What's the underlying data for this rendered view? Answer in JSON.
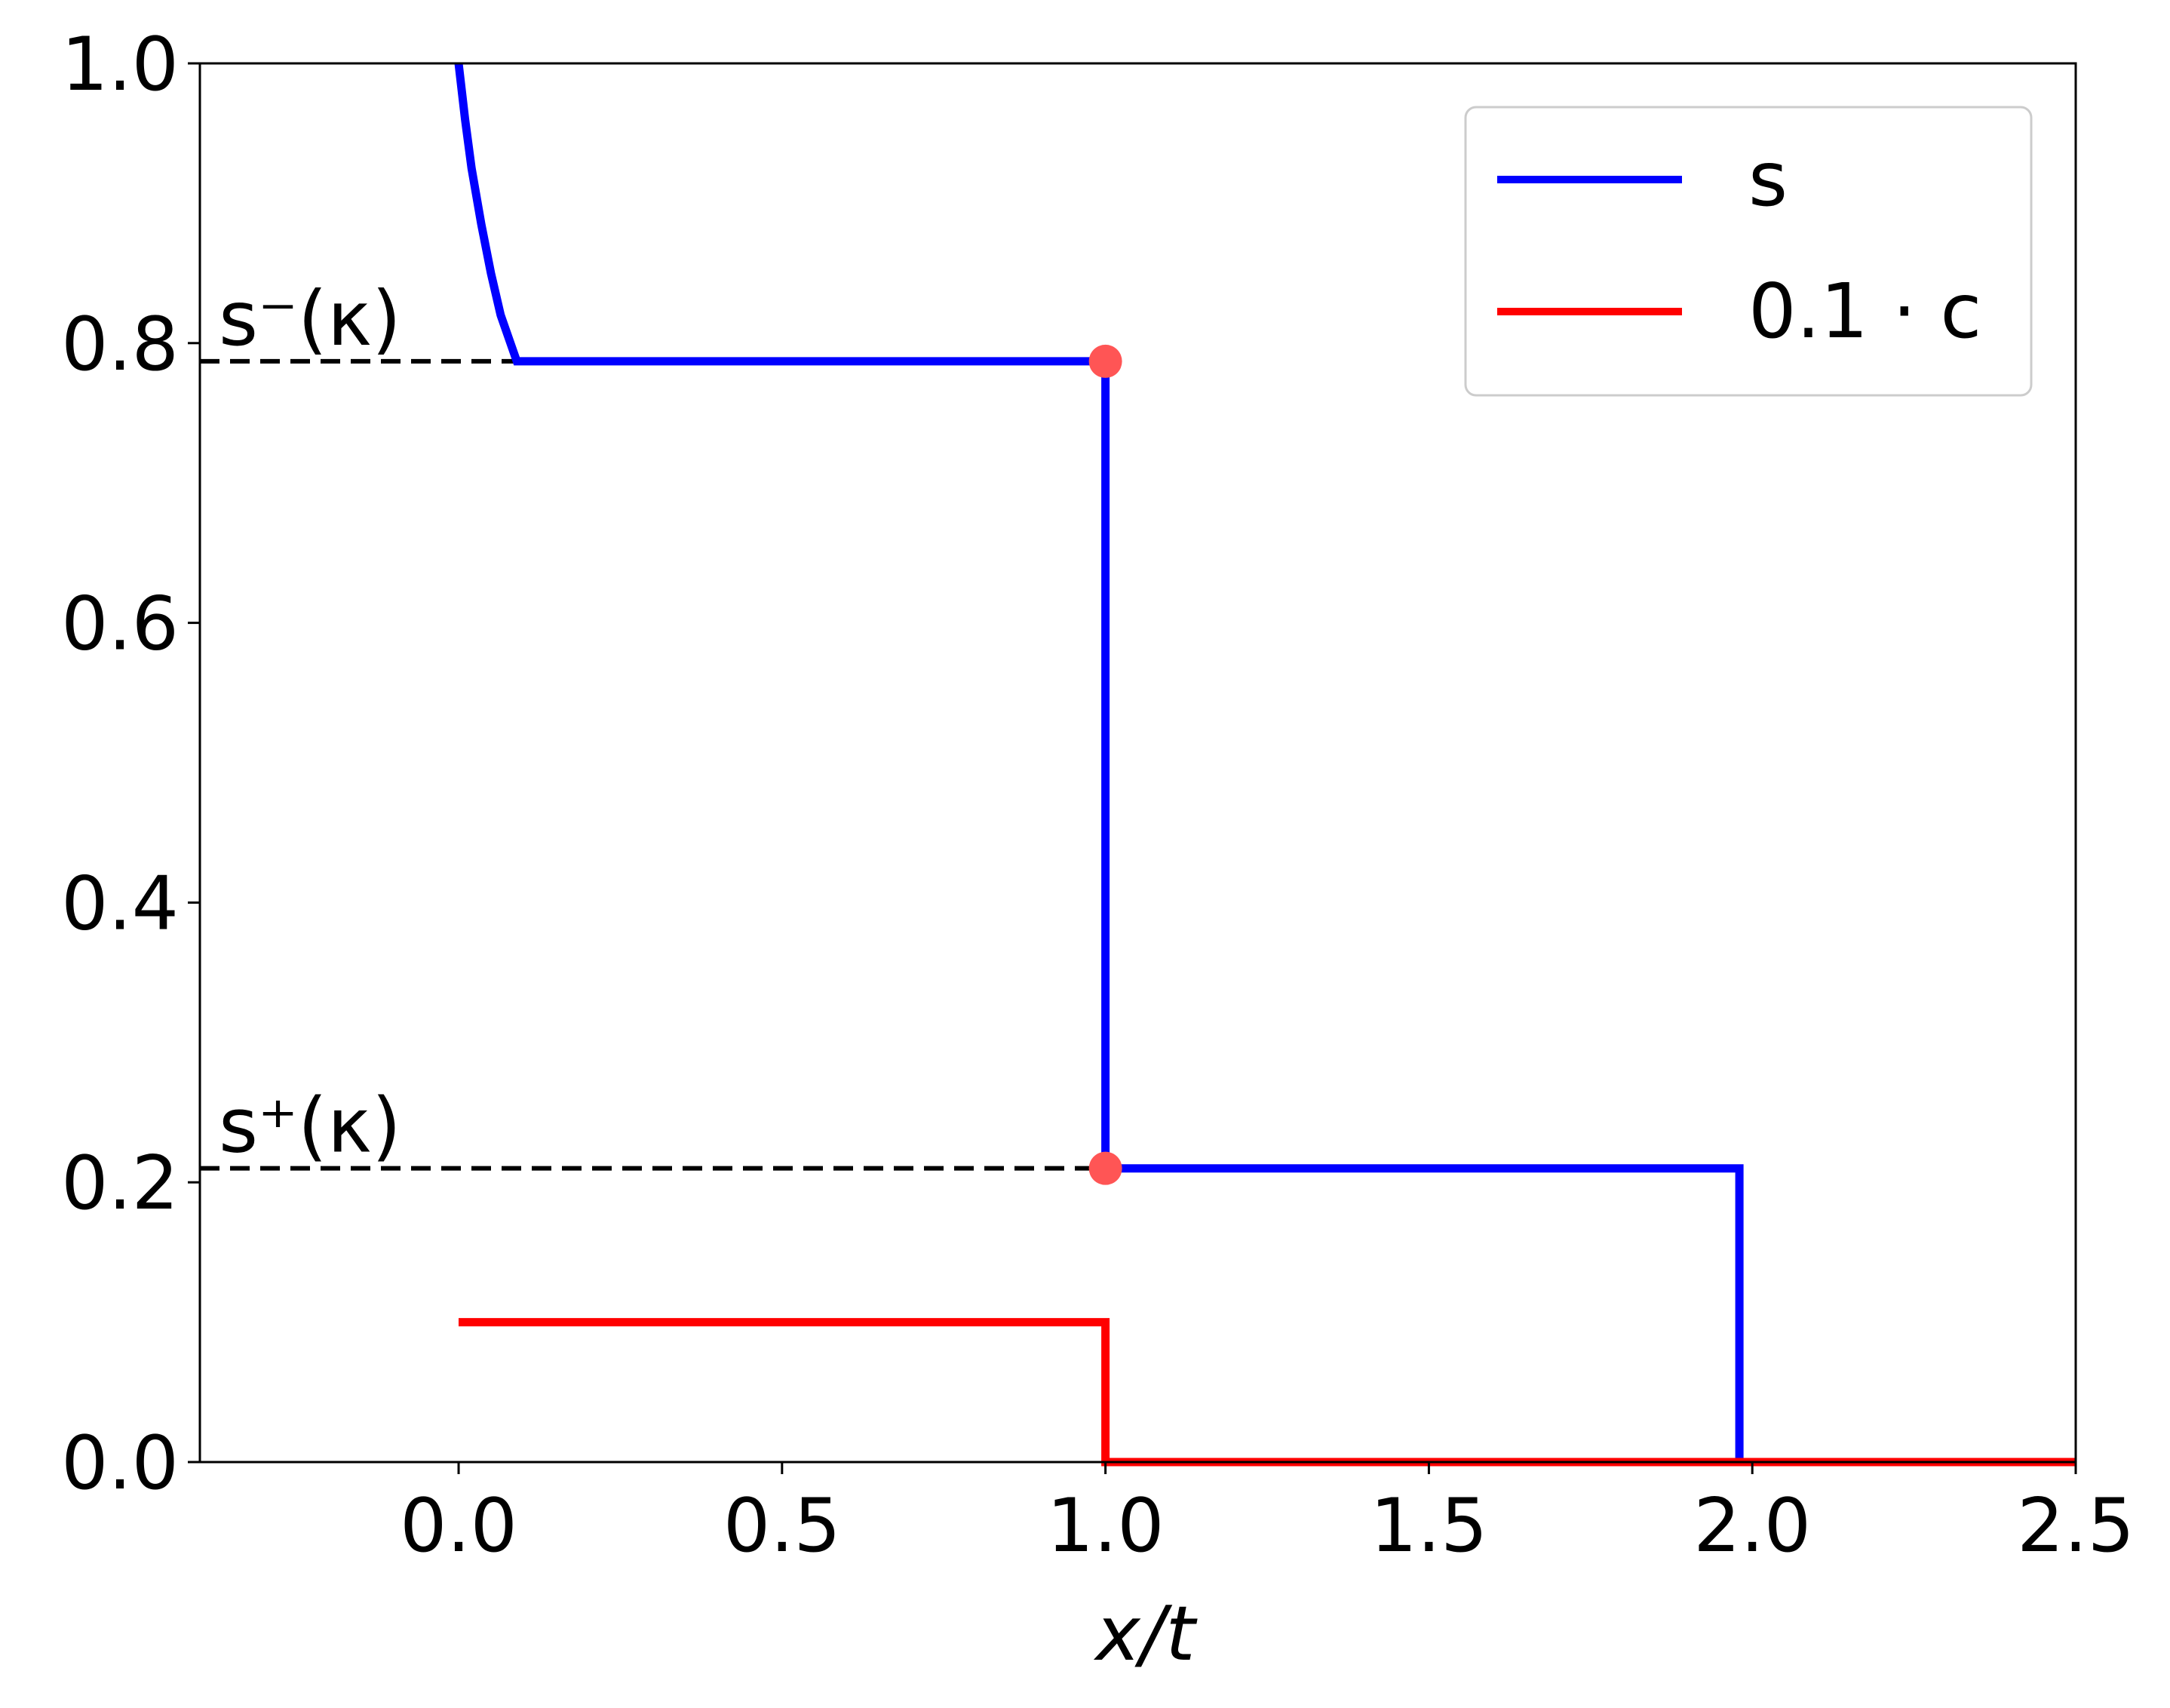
{
  "chart_data": {
    "type": "line",
    "xlabel": "x/t",
    "ylabel": "",
    "xlim": [
      -0.4,
      2.5
    ],
    "ylim": [
      0.0,
      1.0
    ],
    "xticks": [
      "0.0",
      "0.5",
      "1.0",
      "1.5",
      "2.0",
      "2.5"
    ],
    "yticks": [
      "0.0",
      "0.2",
      "0.4",
      "0.6",
      "0.8",
      "1.0"
    ],
    "grid": false,
    "legend_position": "top-right",
    "series": [
      {
        "name": "s",
        "color": "#0000ff",
        "points": [
          [
            0.0,
            1.0
          ],
          [
            0.01,
            0.96
          ],
          [
            0.02,
            0.925
          ],
          [
            0.035,
            0.885
          ],
          [
            0.05,
            0.85
          ],
          [
            0.065,
            0.82
          ],
          [
            0.09,
            0.787
          ],
          [
            1.0,
            0.787
          ],
          [
            1.0,
            0.21
          ],
          [
            1.98,
            0.21
          ],
          [
            1.98,
            0.0
          ],
          [
            2.5,
            0.0
          ]
        ]
      },
      {
        "name": "0.1 · c",
        "color": "#ff0000",
        "points": [
          [
            0.0,
            0.1
          ],
          [
            1.0,
            0.1
          ],
          [
            1.0,
            0.0
          ],
          [
            2.5,
            0.0
          ]
        ]
      }
    ],
    "reference_lines": [
      {
        "label": "s⁻(κ)",
        "y": 0.787,
        "x_end": 0.09
      },
      {
        "label": "s⁺(κ)",
        "y": 0.21,
        "x_end": 1.0
      }
    ],
    "markers": [
      {
        "x": 1.0,
        "y": 0.787,
        "color": "#ff5555"
      },
      {
        "x": 1.0,
        "y": 0.21,
        "color": "#ff5555"
      }
    ]
  },
  "legend": {
    "entries": [
      {
        "label": "s",
        "color": "#0000ff"
      },
      {
        "label": "0.1 · c",
        "color": "#ff0000"
      }
    ]
  },
  "annotations": {
    "s_minus": "s⁻(κ)",
    "s_plus": "s⁺(κ)"
  }
}
